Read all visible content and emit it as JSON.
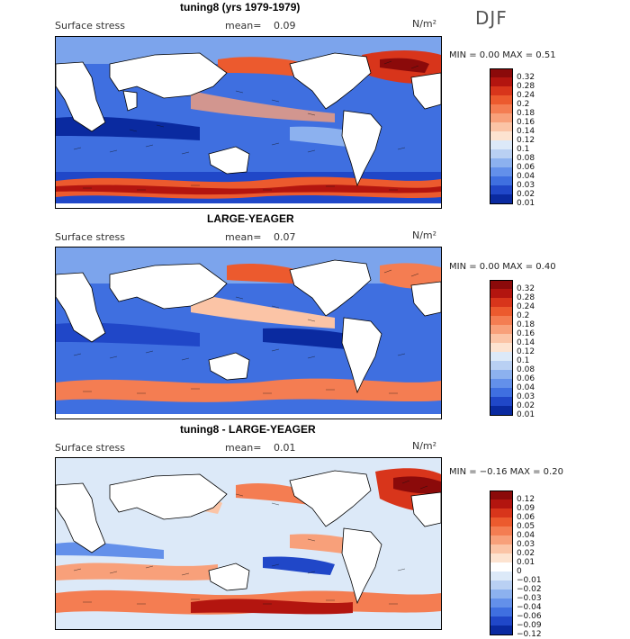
{
  "page": {
    "season": "DJF",
    "units": "N/m²"
  },
  "panels": [
    {
      "title": "tuning8 (yrs 1979-1979)",
      "variable": "Surface stress",
      "mean_label": "mean=",
      "mean": "0.09",
      "minmax": "MIN =   0.00 MAX =   0.51",
      "levels": [
        "0.32",
        "0.28",
        "0.24",
        "0.2",
        "0.18",
        "0.16",
        "0.14",
        "0.12",
        "0.1",
        "0.08",
        "0.06",
        "0.04",
        "0.03",
        "0.02",
        "0.01"
      ],
      "colors": [
        "#8b0a0a",
        "#b3150f",
        "#d8351b",
        "#ec5a2e",
        "#f47d52",
        "#f8a07a",
        "#fbc4a6",
        "#fde3d0",
        "#dce9f8",
        "#b9d0f3",
        "#8cb1ef",
        "#6390ea",
        "#3f6fe0",
        "#2047c8",
        "#0a2aa0"
      ]
    },
    {
      "title": "LARGE-YEAGER",
      "variable": "Surface stress",
      "mean_label": "mean=",
      "mean": "0.07",
      "minmax": "MIN =   0.00 MAX =   0.40",
      "levels": [
        "0.32",
        "0.28",
        "0.24",
        "0.2",
        "0.18",
        "0.16",
        "0.14",
        "0.12",
        "0.1",
        "0.08",
        "0.06",
        "0.04",
        "0.03",
        "0.02",
        "0.01"
      ],
      "colors": [
        "#8b0a0a",
        "#b3150f",
        "#d8351b",
        "#ec5a2e",
        "#f47d52",
        "#f8a07a",
        "#fbc4a6",
        "#fde3d0",
        "#dce9f8",
        "#b9d0f3",
        "#8cb1ef",
        "#6390ea",
        "#3f6fe0",
        "#2047c8",
        "#0a2aa0"
      ]
    },
    {
      "title": "tuning8 - LARGE-YEAGER",
      "variable": "Surface stress",
      "mean_label": "mean=",
      "mean": "0.01",
      "minmax": "MIN =  −0.16 MAX =   0.20",
      "levels": [
        "0.12",
        "0.09",
        "0.06",
        "0.05",
        "0.04",
        "0.03",
        "0.02",
        "0.01",
        "0",
        "−0.01",
        "−0.02",
        "−0.03",
        "−0.04",
        "−0.06",
        "−0.09",
        "−0.12"
      ],
      "colors": [
        "#8b0a0a",
        "#b3150f",
        "#d8351b",
        "#ec5a2e",
        "#f47d52",
        "#f8a07a",
        "#fbc4a6",
        "#fde3d0",
        "#ffffff",
        "#dce9f8",
        "#b9d0f3",
        "#8cb1ef",
        "#6390ea",
        "#3f6fe0",
        "#2047c8",
        "#0a2aa0"
      ]
    }
  ]
}
